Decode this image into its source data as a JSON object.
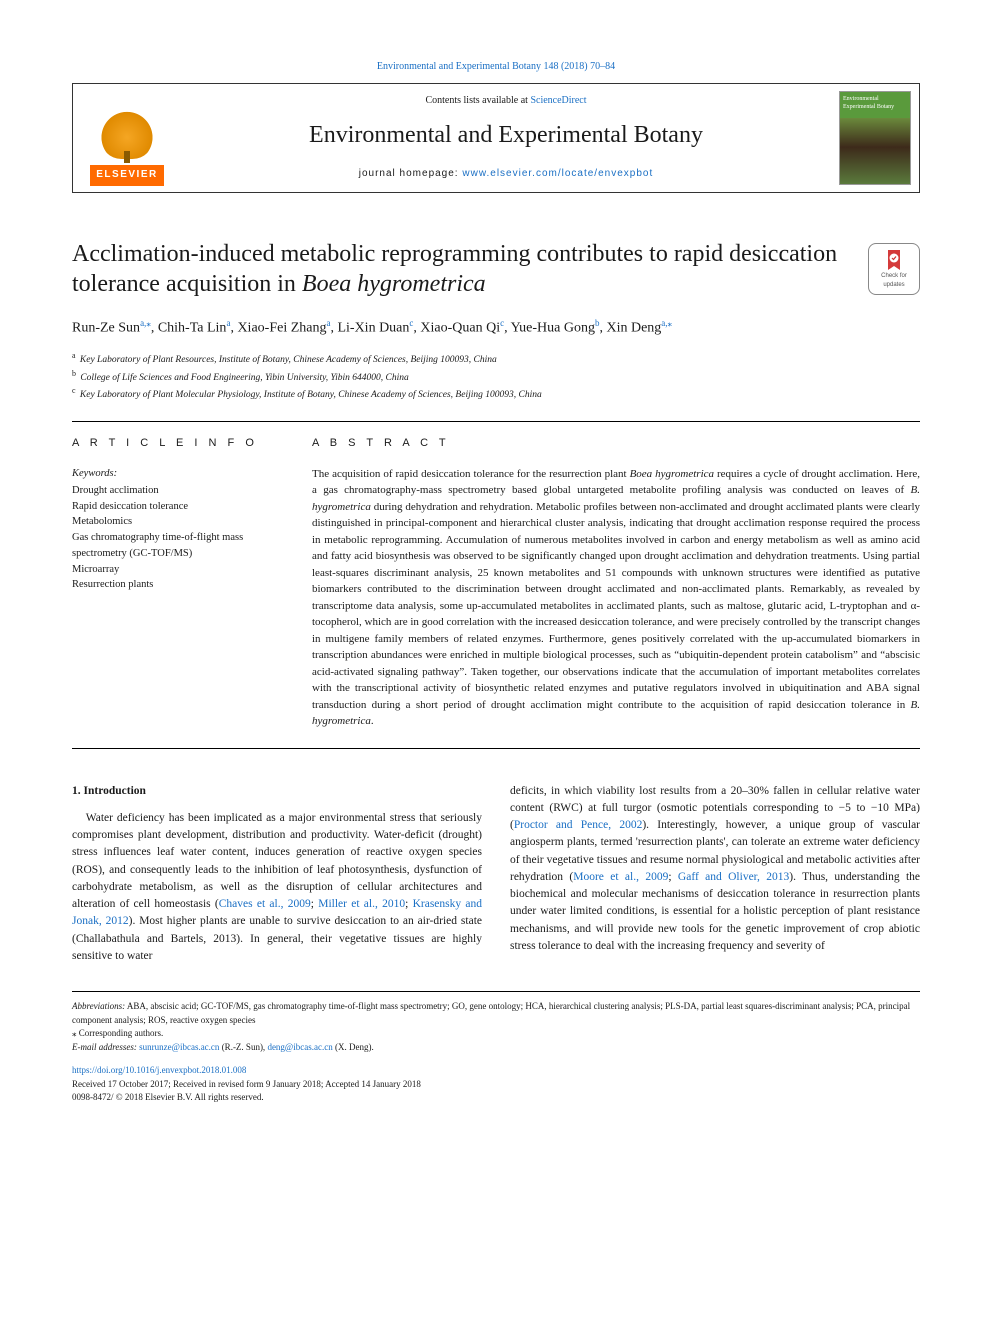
{
  "colors": {
    "link": "#1a6fc4",
    "text": "#1a1a1a",
    "elsevier_orange": "#ff6a00",
    "background": "#ffffff"
  },
  "typography": {
    "body_font": "Georgia, 'Times New Roman', serif",
    "journal_title_size": 24,
    "article_title_size": 24,
    "abstract_size": 11,
    "body_size": 11.5,
    "footnote_size": 9
  },
  "top_citation": "Environmental and Experimental Botany 148 (2018) 70–84",
  "header": {
    "contents_prefix": "Contents lists available at ",
    "contents_link": "ScienceDirect",
    "journal_title": "Environmental and Experimental Botany",
    "homepage_prefix": "journal homepage: ",
    "homepage_url": "www.elsevier.com/locate/envexpbot",
    "elsevier_label": "ELSEVIER",
    "cover_text": "Environmental Experimental Botany"
  },
  "updates_badge": {
    "line1": "Check for",
    "line2": "updates"
  },
  "article": {
    "title_plain": "Acclimation-induced metabolic reprogramming contributes to rapid desiccation tolerance acquisition in ",
    "title_italic": "Boea hygrometrica",
    "authors_html": "Run-Ze Sun<sup><a>a,</a>⁎</sup>, Chih-Ta Lin<sup><a>a</a></sup>, Xiao-Fei Zhang<sup><a>a</a></sup>, Li-Xin Duan<sup><a>c</a></sup>, Xiao-Quan Qi<sup><a>c</a></sup>, Yue-Hua Gong<sup><a>b</a></sup>, Xin Deng<sup><a>a,</a>⁎</sup>",
    "affiliations": [
      {
        "tag": "a",
        "text": "Key Laboratory of Plant Resources, Institute of Botany, Chinese Academy of Sciences, Beijing 100093, China"
      },
      {
        "tag": "b",
        "text": "College of Life Sciences and Food Engineering, Yibin University, Yibin 644000, China"
      },
      {
        "tag": "c",
        "text": "Key Laboratory of Plant Molecular Physiology, Institute of Botany, Chinese Academy of Sciences, Beijing 100093, China"
      }
    ]
  },
  "info": {
    "heading": "A R T I C L E  I N F O",
    "keywords_label": "Keywords:",
    "keywords": [
      "Drought acclimation",
      "Rapid desiccation tolerance",
      "Metabolomics",
      "Gas chromatography time-of-flight mass spectrometry (GC-TOF/MS)",
      "Microarray",
      "Resurrection plants"
    ]
  },
  "abstract": {
    "heading": "A B S T R A C T",
    "text": "The acquisition of rapid desiccation tolerance for the resurrection plant <em>Boea hygrometrica</em> requires a cycle of drought acclimation. Here, a gas chromatography-mass spectrometry based global untargeted metabolite profiling analysis was conducted on leaves of <em>B. hygrometrica</em> during dehydration and rehydration. Metabolic profiles between non-acclimated and drought acclimated plants were clearly distinguished in principal-component and hierarchical cluster analysis, indicating that drought acclimation response required the process in metabolic reprogramming. Accumulation of numerous metabolites involved in carbon and energy metabolism as well as amino acid and fatty acid biosynthesis was observed to be significantly changed upon drought acclimation and dehydration treatments. Using partial least-squares discriminant analysis, 25 known metabolites and 51 compounds with unknown structures were identified as putative biomarkers contributed to the discrimination between drought acclimated and non-acclimated plants. Remarkably, as revealed by transcriptome data analysis, some up-accumulated metabolites in acclimated plants, such as maltose, glutaric acid, L-tryptophan and α-tocopherol, which are in good correlation with the increased desiccation tolerance, and were precisely controlled by the transcript changes in multigene family members of related enzymes. Furthermore, genes positively correlated with the up-accumulated biomarkers in transcription abundances were enriched in multiple biological processes, such as “ubiquitin-dependent protein catabolism” and “abscisic acid-activated signaling pathway”. Taken together, our observations indicate that the accumulation of important metabolites correlates with the transcriptional activity of biosynthetic related enzymes and putative regulators involved in ubiquitination and ABA signal transduction during a short period of drought acclimation might contribute to the acquisition of rapid desiccation tolerance in <em>B. hygrometrica</em>."
  },
  "body": {
    "section_number": "1.",
    "section_title": "Introduction",
    "col1": "Water deficiency has been implicated as a major environmental stress that seriously compromises plant development, distribution and productivity. Water-deficit (drought) stress influences leaf water content, induces generation of reactive oxygen species (ROS), and consequently leads to the inhibition of leaf photosynthesis, dysfunction of carbohydrate metabolism, as well as the disruption of cellular architectures and alteration of cell homeostasis (<a>Chaves et al., 2009</a>; <a>Miller et al., 2010</a>; <a>Krasensky and Jonak, 2012</a>). Most higher plants are unable to survive desiccation to an air-dried state (Challabathula and Bartels, 2013). In general, their vegetative tissues are highly sensitive to water",
    "col2": "deficits, in which viability lost results from a 20–30% fallen in cellular relative water content (RWC) at full turgor (osmotic potentials corresponding to −5 to −10 MPa) (<a>Proctor and Pence, 2002</a>). Interestingly, however, a unique group of vascular angiosperm plants, termed 'resurrection plants', can tolerate an extreme water deficiency of their vegetative tissues and resume normal physiological and metabolic activities after rehydration (<a>Moore et al., 2009</a>; <a>Gaff and Oliver, 2013</a>). Thus, understanding the biochemical and molecular mechanisms of desiccation tolerance in resurrection plants under water limited conditions, is essential for a holistic perception of plant resistance mechanisms, and will provide new tools for the genetic improvement of crop abiotic stress tolerance to deal with the increasing frequency and severity of"
  },
  "footnotes": {
    "abbrev_label": "Abbreviations:",
    "abbrev_text": " ABA, abscisic acid; GC-TOF/MS, gas chromatography time-of-flight mass spectrometry; GO, gene ontology; HCA, hierarchical clustering analysis; PLS-DA, partial least squares-discriminant analysis; PCA, principal component analysis; ROS, reactive oxygen species",
    "corresponding": "⁎ Corresponding authors.",
    "email_label": "E-mail addresses:",
    "emails_html": " <a>sunrunze@ibcas.ac.cn</a> (R.-Z. Sun), <a>deng@ibcas.ac.cn</a> (X. Deng)."
  },
  "doi": {
    "url": "https://doi.org/10.1016/j.envexpbot.2018.01.008",
    "received": "Received 17 October 2017; Received in revised form 9 January 2018; Accepted 14 January 2018",
    "copyright": "0098-8472/ © 2018 Elsevier B.V. All rights reserved."
  }
}
